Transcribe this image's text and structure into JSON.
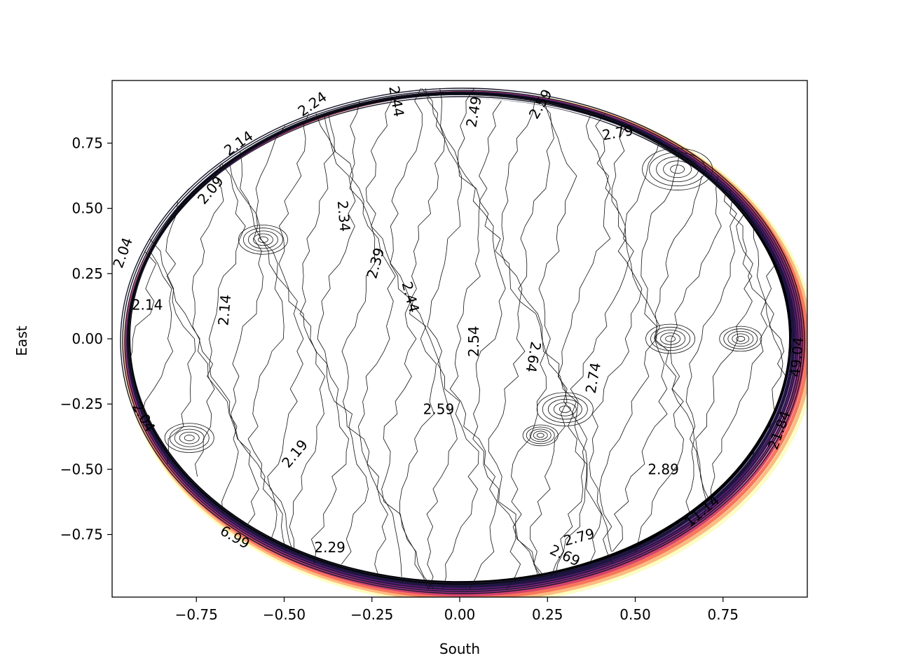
{
  "chart_data": {
    "type": "contour",
    "title": "",
    "xlabel": "South",
    "ylabel": "East",
    "xlim": [
      -0.99,
      0.99
    ],
    "ylim": [
      -0.99,
      0.99
    ],
    "xticks": [
      {
        "v": -0.75,
        "label": "−0.75"
      },
      {
        "v": -0.5,
        "label": "−0.50"
      },
      {
        "v": -0.25,
        "label": "−0.25"
      },
      {
        "v": 0.0,
        "label": "0.00"
      },
      {
        "v": 0.25,
        "label": "0.25"
      },
      {
        "v": 0.5,
        "label": "0.50"
      },
      {
        "v": 0.75,
        "label": "0.75"
      }
    ],
    "yticks": [
      {
        "v": -0.75,
        "label": "−0.75"
      },
      {
        "v": -0.5,
        "label": "−0.50"
      },
      {
        "v": -0.25,
        "label": "−0.25"
      },
      {
        "v": 0.0,
        "label": "0.00"
      },
      {
        "v": 0.25,
        "label": "0.25"
      },
      {
        "v": 0.5,
        "label": "0.50"
      },
      {
        "v": 0.75,
        "label": "0.75"
      }
    ],
    "colormap": "magma",
    "grid": false,
    "contour_labels": [
      {
        "text": "2.24",
        "x": -0.42,
        "y": 0.9,
        "rot": -35
      },
      {
        "text": "2.14",
        "x": -0.63,
        "y": 0.75,
        "rot": -35
      },
      {
        "text": "2.09",
        "x": -0.71,
        "y": 0.57,
        "rot": -50
      },
      {
        "text": "2.04",
        "x": -0.96,
        "y": 0.33,
        "rot": -70
      },
      {
        "text": "2.14",
        "x": -0.89,
        "y": 0.13,
        "rot": 0
      },
      {
        "text": "2.14",
        "x": -0.67,
        "y": 0.11,
        "rot": -85
      },
      {
        "text": "2.34",
        "x": -0.33,
        "y": 0.47,
        "rot": 85
      },
      {
        "text": "2.39",
        "x": -0.24,
        "y": 0.29,
        "rot": -75
      },
      {
        "text": "2.44",
        "x": -0.14,
        "y": 0.16,
        "rot": 75
      },
      {
        "text": "2.54",
        "x": 0.04,
        "y": -0.01,
        "rot": -90
      },
      {
        "text": "2.64",
        "x": 0.21,
        "y": -0.07,
        "rot": 100
      },
      {
        "text": "2.74",
        "x": 0.38,
        "y": -0.15,
        "rot": -80
      },
      {
        "text": "2.59",
        "x": -0.06,
        "y": -0.27,
        "rot": 0
      },
      {
        "text": "2.79",
        "x": 0.45,
        "y": 0.79,
        "rot": -10
      },
      {
        "text": "2.59",
        "x": 0.23,
        "y": 0.9,
        "rot": -60
      },
      {
        "text": "2.44",
        "x": -0.18,
        "y": 0.91,
        "rot": 80
      },
      {
        "text": "2.49",
        "x": 0.04,
        "y": 0.87,
        "rot": -80
      },
      {
        "text": "2.19",
        "x": -0.47,
        "y": -0.44,
        "rot": -50
      },
      {
        "text": "2.04",
        "x": -0.9,
        "y": -0.3,
        "rot": 60
      },
      {
        "text": "2.89",
        "x": 0.58,
        "y": -0.5,
        "rot": 0
      },
      {
        "text": "2.79",
        "x": 0.34,
        "y": -0.76,
        "rot": -15
      },
      {
        "text": "2.69",
        "x": 0.3,
        "y": -0.83,
        "rot": 25
      },
      {
        "text": "2.29",
        "x": -0.37,
        "y": -0.8,
        "rot": 0
      },
      {
        "text": "6.99",
        "x": -0.64,
        "y": -0.76,
        "rot": 30
      },
      {
        "text": "11.14",
        "x": 0.69,
        "y": -0.66,
        "rot": -40
      },
      {
        "text": "21.84",
        "x": 0.91,
        "y": -0.35,
        "rot": -70
      },
      {
        "text": "49.04",
        "x": 0.96,
        "y": -0.07,
        "rot": -85
      }
    ]
  }
}
